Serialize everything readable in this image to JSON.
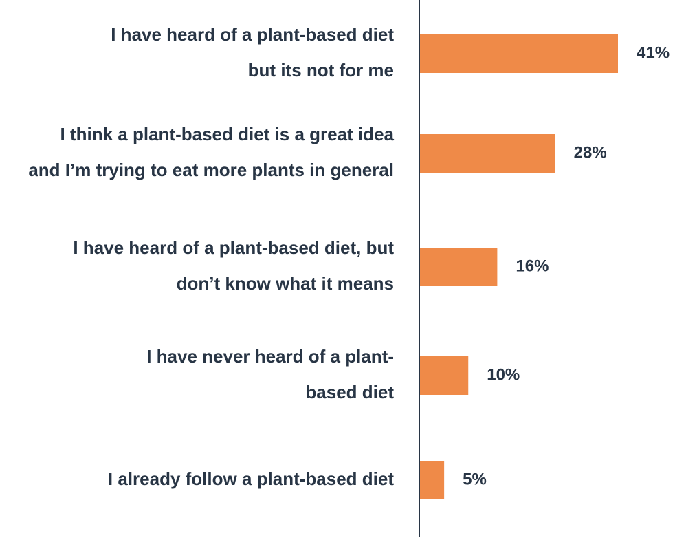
{
  "chart_data": {
    "type": "bar",
    "orientation": "horizontal",
    "categories": [
      [
        "I have heard of a plant-based diet",
        "but its not for me"
      ],
      [
        "I think a plant-based diet is a great idea",
        "and I’m trying to eat more plants in general"
      ],
      [
        "I have heard of a plant-based diet, but",
        "don’t  know what it means"
      ],
      [
        "I have never heard of a plant-",
        "based diet"
      ],
      [
        "I already follow a plant-based diet"
      ]
    ],
    "values": [
      41,
      28,
      16,
      10,
      5
    ],
    "value_labels": [
      "41%",
      "28%",
      "16%",
      "10%",
      "5%"
    ],
    "xlim": [
      0,
      45
    ],
    "grid": false,
    "legend": "none"
  },
  "colors": {
    "bar": "#EF8A48",
    "text": "#283545",
    "axis": "#283545",
    "background": "#FFFFFF"
  }
}
